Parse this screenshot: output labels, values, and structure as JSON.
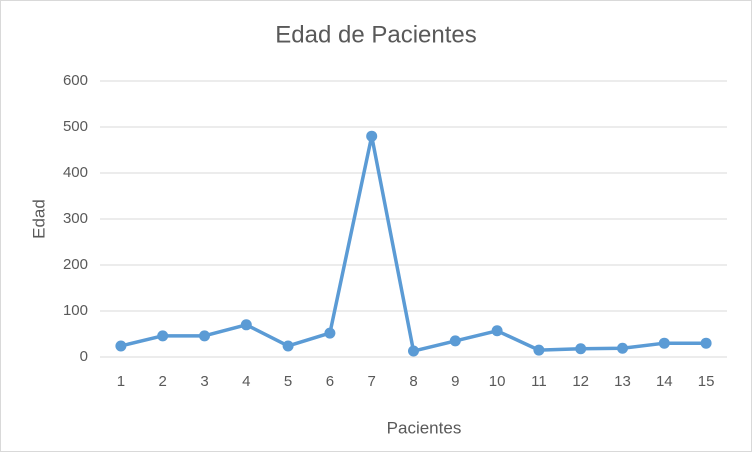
{
  "chart_data": {
    "type": "line",
    "title": "Edad de Pacientes",
    "x_label": "Pacientes",
    "y_label": "Edad",
    "categories": [
      "1",
      "2",
      "3",
      "4",
      "5",
      "6",
      "7",
      "8",
      "9",
      "10",
      "11",
      "12",
      "13",
      "14",
      "15"
    ],
    "series": [
      {
        "name": "Edad",
        "color": "#5b9bd5",
        "values": [
          24,
          46,
          46,
          70,
          24,
          52,
          480,
          13,
          35,
          57,
          15,
          18,
          19,
          30,
          30
        ]
      }
    ],
    "ylim": [
      0,
      600
    ],
    "yticks": [
      0,
      100,
      200,
      300,
      400,
      500,
      600
    ],
    "grid": true
  }
}
